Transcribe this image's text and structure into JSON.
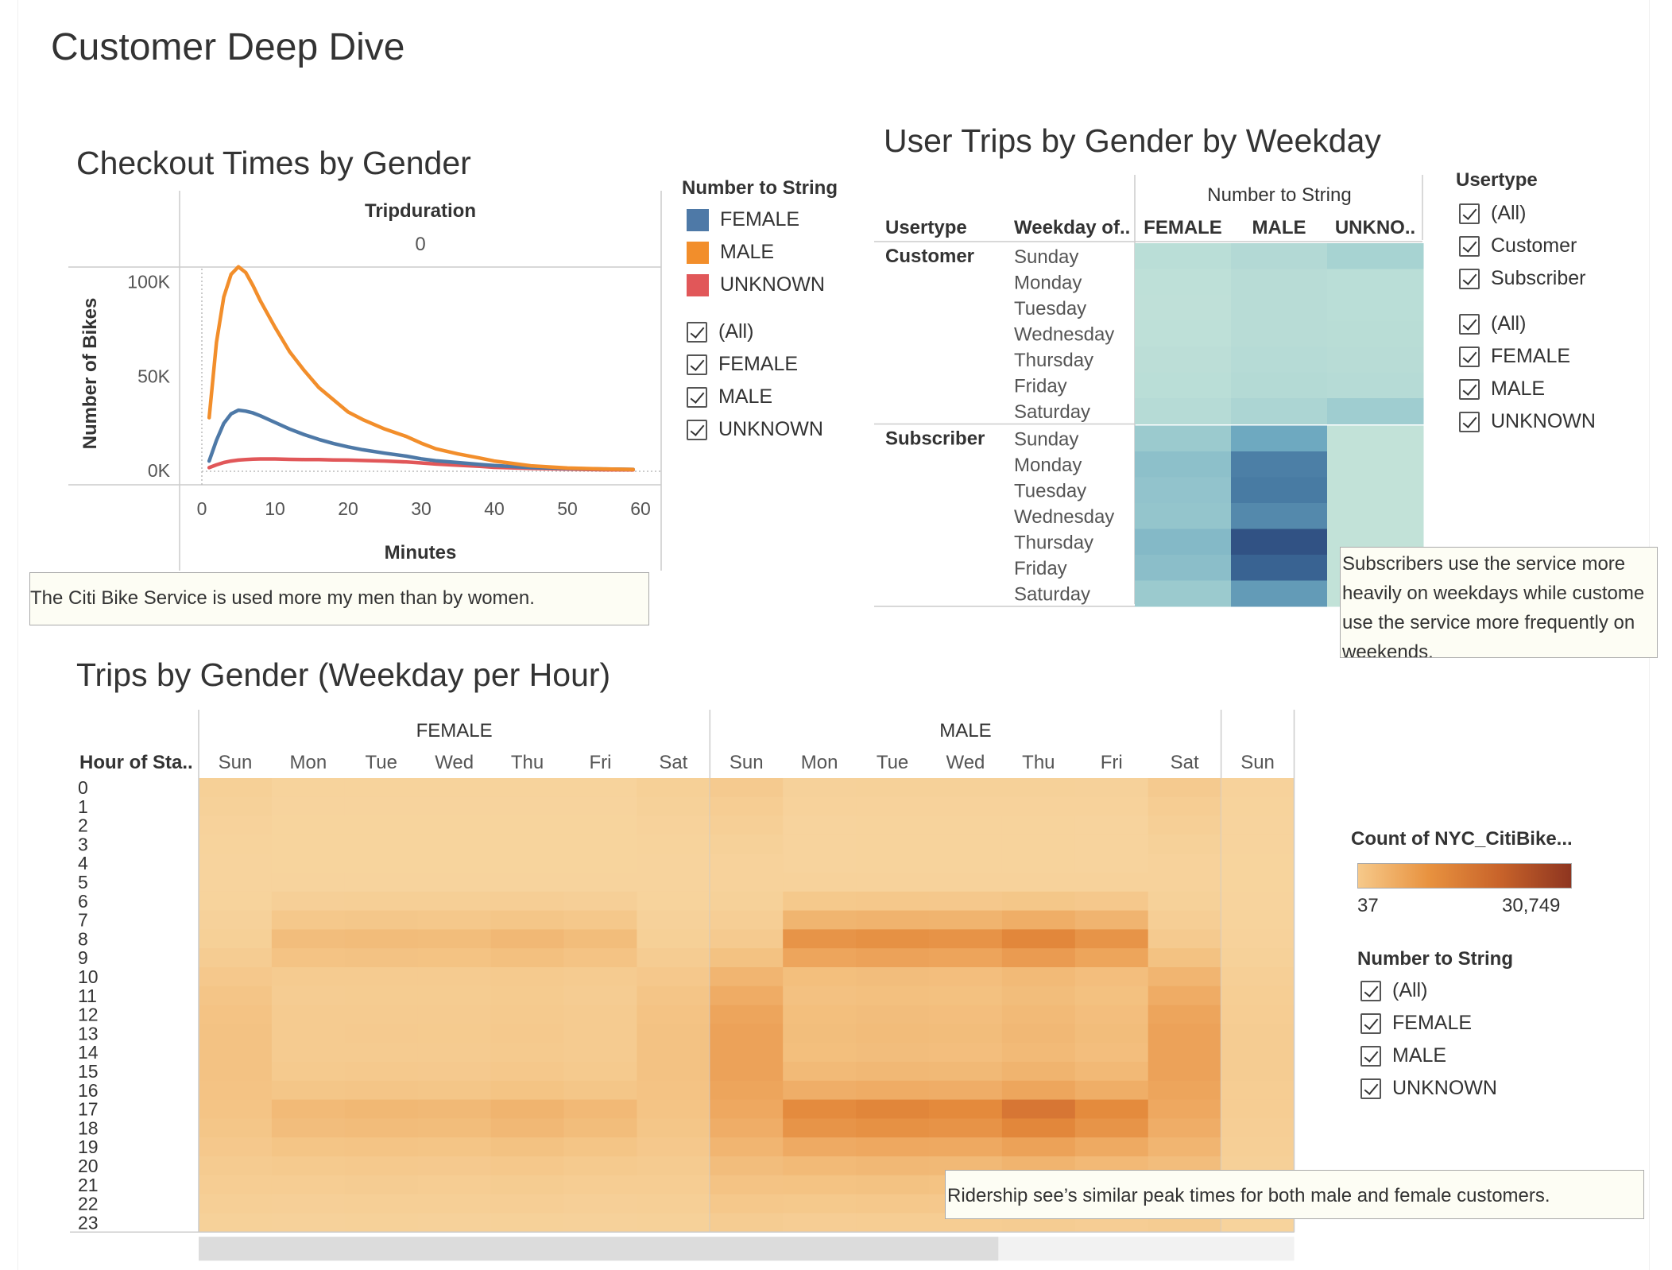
{
  "page_title": "Customer Deep Dive",
  "checkout": {
    "title": "Checkout Times by Gender",
    "column_header": "Tripduration",
    "column_value": "0",
    "annotation": "The Citi Bike Service is used more my men than by women."
  },
  "weekday_chart": {
    "title": "User Trips by Gender by Weekday",
    "annotation": "Subscribers use the service more heavily on weekdays while custome use the service more frequently on weekends."
  },
  "hourly": {
    "title": "Trips by Gender (Weekday per Hour)",
    "annotation": "Ridership see’s similar peak times for both male and female customers."
  },
  "legend_gender": {
    "title": "Number to String",
    "items": [
      {
        "label": "FEMALE",
        "color": "#4e79a7"
      },
      {
        "label": "MALE",
        "color": "#f28e2b"
      },
      {
        "label": "UNKNOWN",
        "color": "#e15759"
      }
    ]
  },
  "filter_gender_1": {
    "options": [
      "(All)",
      "FEMALE",
      "MALE",
      "UNKNOWN"
    ]
  },
  "filter_usertype": {
    "title": "Usertype",
    "options": [
      "(All)",
      "Customer",
      "Subscriber"
    ]
  },
  "filter_gender_2": {
    "options": [
      "(All)",
      "FEMALE",
      "MALE",
      "UNKNOWN"
    ]
  },
  "color_legend": {
    "title": "Count of NYC_CitiBike...",
    "min_label": "37",
    "max_label": "30,749"
  },
  "filter_gender_3": {
    "title": "Number to String",
    "options": [
      "(All)",
      "FEMALE",
      "MALE",
      "UNKNOWN"
    ]
  },
  "chart_data": [
    {
      "type": "line",
      "title": "Checkout Times by Gender",
      "xlabel": "Minutes",
      "ylabel": "Number of Bikes",
      "xlim": [
        0,
        60
      ],
      "ylim": [
        0,
        110000
      ],
      "x_ticks": [
        "0",
        "10",
        "20",
        "30",
        "40",
        "50",
        "60"
      ],
      "y_ticks": [
        {
          "value": 0,
          "label": "0K"
        },
        {
          "value": 50000,
          "label": "50K"
        },
        {
          "value": 100000,
          "label": "100K"
        }
      ],
      "x": [
        1,
        2,
        3,
        4,
        5,
        6,
        7,
        8,
        10,
        12,
        14,
        16,
        18,
        20,
        22,
        25,
        28,
        30,
        32,
        35,
        38,
        40,
        45,
        50,
        55,
        59
      ],
      "series": [
        {
          "name": "FEMALE",
          "color": "#4e79a7",
          "values": [
            5000,
            16000,
            25000,
            30000,
            32000,
            31500,
            30500,
            29000,
            25500,
            22000,
            19000,
            16500,
            14300,
            12500,
            11000,
            9200,
            7600,
            6200,
            5200,
            4200,
            3200,
            2600,
            1600,
            1100,
            800,
            600
          ]
        },
        {
          "name": "MALE",
          "color": "#f28e2b",
          "values": [
            28000,
            68000,
            92000,
            104000,
            108000,
            105000,
            98000,
            90000,
            76000,
            63000,
            53000,
            44000,
            37500,
            31000,
            27000,
            22000,
            18000,
            14500,
            11500,
            8800,
            6600,
            5000,
            2500,
            1300,
            800,
            500
          ]
        },
        {
          "name": "UNKNOWN",
          "color": "#e15759",
          "values": [
            1500,
            3000,
            4200,
            5000,
            5500,
            5800,
            6000,
            6100,
            6100,
            5900,
            5800,
            5800,
            5600,
            5500,
            5300,
            5000,
            4500,
            4000,
            3400,
            2800,
            2200,
            1700,
            1100,
            700,
            400,
            300
          ]
        }
      ]
    },
    {
      "type": "heatmap",
      "title": "User Trips by Gender by Weekday",
      "row_header_1": "Usertype",
      "row_header_2": "Weekday of..",
      "column_group": "Number to String",
      "columns": [
        "FEMALE",
        "MALE",
        "UNKNO.."
      ],
      "groups": [
        {
          "usertype": "Customer",
          "weekdays": [
            "Sunday",
            "Monday",
            "Tuesday",
            "Wednesday",
            "Thursday",
            "Friday",
            "Saturday"
          ],
          "values": [
            [
              0.08,
              0.14,
              0.24
            ],
            [
              0.05,
              0.1,
              0.08
            ],
            [
              0.04,
              0.1,
              0.08
            ],
            [
              0.05,
              0.1,
              0.09
            ],
            [
              0.07,
              0.12,
              0.1
            ],
            [
              0.08,
              0.13,
              0.12
            ],
            [
              0.12,
              0.2,
              0.28
            ]
          ]
        },
        {
          "usertype": "Subscriber",
          "weekdays": [
            "Sunday",
            "Monday",
            "Tuesday",
            "Wednesday",
            "Thursday",
            "Friday",
            "Saturday"
          ],
          "values": [
            [
              0.3,
              0.5,
              0.02
            ],
            [
              0.36,
              0.68,
              0.02
            ],
            [
              0.34,
              0.7,
              0.02
            ],
            [
              0.33,
              0.64,
              0.02
            ],
            [
              0.4,
              0.92,
              0.02
            ],
            [
              0.37,
              0.82,
              0.02
            ],
            [
              0.3,
              0.56,
              0.02
            ]
          ]
        }
      ]
    },
    {
      "type": "heatmap",
      "title": "Trips by Gender (Weekday per Hour)",
      "row_header": "Hour of Sta..",
      "hours": [
        "0",
        "1",
        "2",
        "3",
        "4",
        "5",
        "6",
        "7",
        "8",
        "9",
        "10",
        "11",
        "12",
        "13",
        "14",
        "15",
        "16",
        "17",
        "18",
        "19",
        "20",
        "21",
        "22",
        "23"
      ],
      "value_range": [
        37,
        30749
      ],
      "groups": [
        {
          "name": "FEMALE",
          "days": [
            "Sun",
            "Mon",
            "Tue",
            "Wed",
            "Thu",
            "Fri",
            "Sat"
          ]
        },
        {
          "name": "MALE",
          "days": [
            "Sun",
            "Mon",
            "Tue",
            "Wed",
            "Thu",
            "Fri",
            "Sat"
          ]
        },
        {
          "name": "",
          "days": [
            "Sun"
          ]
        }
      ],
      "hour_profile_weekday": [
        0.03,
        0.02,
        0.01,
        0.01,
        0.01,
        0.02,
        0.12,
        0.3,
        0.55,
        0.42,
        0.22,
        0.2,
        0.22,
        0.23,
        0.22,
        0.26,
        0.35,
        0.62,
        0.55,
        0.38,
        0.26,
        0.18,
        0.12,
        0.07
      ],
      "hour_profile_weekend": [
        0.1,
        0.07,
        0.05,
        0.03,
        0.02,
        0.02,
        0.03,
        0.06,
        0.1,
        0.18,
        0.28,
        0.35,
        0.4,
        0.42,
        0.42,
        0.42,
        0.4,
        0.38,
        0.34,
        0.28,
        0.22,
        0.17,
        0.12,
        0.08
      ],
      "group_scale": [
        0.42,
        1.0,
        0.18
      ],
      "day_factor": [
        1.0,
        0.95,
        1.0,
        0.97,
        1.12,
        0.96,
        1.0
      ]
    }
  ]
}
